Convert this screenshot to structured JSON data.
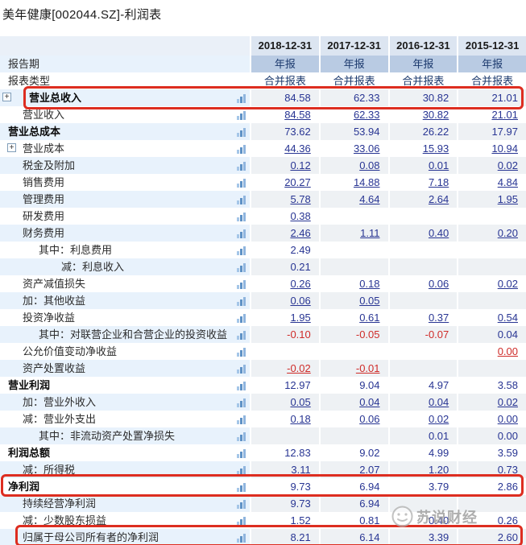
{
  "title": "美年健康[002044.SZ]-利润表",
  "watermark": {
    "text": "苏说财经"
  },
  "icons": {
    "expand_glyph": "+"
  },
  "colors": {
    "annotation_red": "#dd2d20",
    "value_blue": "#283593",
    "negative_red": "#cf2b28",
    "stripe_label_blue": "#e8f2fc",
    "stripe_data_gray": "#eef1f4",
    "period_cell_blue": "#b9cbe3",
    "header_band_blue": "#dce5f1"
  },
  "table": {
    "columns": [
      "2018-12-31",
      "2017-12-31",
      "2016-12-31",
      "2015-12-31"
    ],
    "rows": [
      {
        "label": "报告期",
        "indent": 0,
        "type": "period",
        "chart": false,
        "cells": [
          [
            "年报",
            ""
          ],
          [
            "年报",
            ""
          ],
          [
            "年报",
            ""
          ],
          [
            "年报",
            ""
          ]
        ]
      },
      {
        "label": "报表类型",
        "indent": 0,
        "type": "type",
        "chart": false,
        "cells": [
          [
            "合并报表",
            ""
          ],
          [
            "合并报表",
            ""
          ],
          [
            "合并报表",
            ""
          ],
          [
            "合并报表",
            ""
          ]
        ]
      },
      {
        "label": "营业总收入",
        "indent": 0,
        "bold": true,
        "expand": "outer",
        "chart": true,
        "cells": [
          [
            "84.58",
            ""
          ],
          [
            "62.33",
            ""
          ],
          [
            "30.82",
            ""
          ],
          [
            "21.01",
            ""
          ]
        ]
      },
      {
        "label": "营业收入",
        "indent": 1,
        "chart": true,
        "cells": [
          [
            "84.58",
            "u"
          ],
          [
            "62.33",
            "u"
          ],
          [
            "30.82",
            "u"
          ],
          [
            "21.01",
            "u"
          ]
        ]
      },
      {
        "label": "营业总成本",
        "indent": 0,
        "bold": true,
        "chart": true,
        "cells": [
          [
            "73.62",
            ""
          ],
          [
            "53.94",
            ""
          ],
          [
            "26.22",
            ""
          ],
          [
            "17.97",
            ""
          ]
        ]
      },
      {
        "label": "营业成本",
        "indent": 1,
        "expand": "inner",
        "chart": true,
        "cells": [
          [
            "44.36",
            "u"
          ],
          [
            "33.06",
            "u"
          ],
          [
            "15.93",
            "u"
          ],
          [
            "10.94",
            "u"
          ]
        ]
      },
      {
        "label": "税金及附加",
        "indent": 1,
        "chart": true,
        "cells": [
          [
            "0.12",
            "u"
          ],
          [
            "0.08",
            "u"
          ],
          [
            "0.01",
            "u"
          ],
          [
            "0.02",
            "u"
          ]
        ]
      },
      {
        "label": "销售费用",
        "indent": 1,
        "chart": true,
        "cells": [
          [
            "20.27",
            "u"
          ],
          [
            "14.88",
            "u"
          ],
          [
            "7.18",
            "u"
          ],
          [
            "4.84",
            "u"
          ]
        ]
      },
      {
        "label": "管理费用",
        "indent": 1,
        "chart": true,
        "cells": [
          [
            "5.78",
            "u"
          ],
          [
            "4.64",
            "u"
          ],
          [
            "2.64",
            "u"
          ],
          [
            "1.95",
            "u"
          ]
        ]
      },
      {
        "label": "研发费用",
        "indent": 1,
        "chart": true,
        "cells": [
          [
            "0.38",
            "u"
          ],
          [
            "",
            ""
          ],
          [
            "",
            ""
          ],
          [
            "",
            ""
          ]
        ]
      },
      {
        "label": "财务费用",
        "indent": 1,
        "chart": true,
        "cells": [
          [
            "2.46",
            "u"
          ],
          [
            "1.11",
            "u"
          ],
          [
            "0.40",
            "u"
          ],
          [
            "0.20",
            "u"
          ]
        ]
      },
      {
        "label": "其中：利息费用",
        "indent": 2,
        "chart": true,
        "cells": [
          [
            "2.49",
            ""
          ],
          [
            "",
            ""
          ],
          [
            "",
            ""
          ],
          [
            "",
            ""
          ]
        ]
      },
      {
        "label": "减：利息收入",
        "indent": 3,
        "chart": true,
        "cells": [
          [
            "0.21",
            ""
          ],
          [
            "",
            ""
          ],
          [
            "",
            ""
          ],
          [
            "",
            ""
          ]
        ]
      },
      {
        "label": "资产减值损失",
        "indent": 1,
        "chart": true,
        "cells": [
          [
            "0.26",
            "u"
          ],
          [
            "0.18",
            "u"
          ],
          [
            "0.06",
            "u"
          ],
          [
            "0.02",
            "u"
          ]
        ]
      },
      {
        "label": "加：其他收益",
        "indent": 1,
        "chart": true,
        "cells": [
          [
            "0.06",
            "u"
          ],
          [
            "0.05",
            "u"
          ],
          [
            "",
            ""
          ],
          [
            "",
            ""
          ]
        ]
      },
      {
        "label": "投资净收益",
        "indent": 1,
        "chart": true,
        "cells": [
          [
            "1.95",
            "u"
          ],
          [
            "0.61",
            "u"
          ],
          [
            "0.37",
            "u"
          ],
          [
            "0.54",
            "u"
          ]
        ]
      },
      {
        "label": "其中：对联营企业和合营企业的投资收益",
        "indent": 2,
        "chart": true,
        "cells": [
          [
            "-0.10",
            "neg"
          ],
          [
            "-0.05",
            "neg"
          ],
          [
            "-0.07",
            "neg"
          ],
          [
            "0.04",
            ""
          ]
        ]
      },
      {
        "label": "公允价值变动净收益",
        "indent": 1,
        "chart": true,
        "cells": [
          [
            "",
            ""
          ],
          [
            "",
            ""
          ],
          [
            "",
            ""
          ],
          [
            "0.00",
            "negu"
          ]
        ]
      },
      {
        "label": "资产处置收益",
        "indent": 1,
        "chart": true,
        "cells": [
          [
            "-0.02",
            "negu"
          ],
          [
            "-0.01",
            "negu"
          ],
          [
            "",
            ""
          ],
          [
            "",
            ""
          ]
        ]
      },
      {
        "label": "营业利润",
        "indent": 0,
        "bold": true,
        "chart": true,
        "cells": [
          [
            "12.97",
            ""
          ],
          [
            "9.04",
            ""
          ],
          [
            "4.97",
            ""
          ],
          [
            "3.58",
            ""
          ]
        ]
      },
      {
        "label": "加：营业外收入",
        "indent": 1,
        "chart": true,
        "cells": [
          [
            "0.05",
            "u"
          ],
          [
            "0.04",
            "u"
          ],
          [
            "0.04",
            "u"
          ],
          [
            "0.02",
            "u"
          ]
        ]
      },
      {
        "label": "减：营业外支出",
        "indent": 1,
        "chart": true,
        "cells": [
          [
            "0.18",
            "u"
          ],
          [
            "0.06",
            "u"
          ],
          [
            "0.02",
            "u"
          ],
          [
            "0.00",
            "u"
          ]
        ]
      },
      {
        "label": "其中：非流动资产处置净损失",
        "indent": 2,
        "chart": true,
        "cells": [
          [
            "",
            ""
          ],
          [
            "",
            ""
          ],
          [
            "0.01",
            ""
          ],
          [
            "0.00",
            ""
          ]
        ]
      },
      {
        "label": "利润总额",
        "indent": 0,
        "bold": true,
        "chart": true,
        "cells": [
          [
            "12.83",
            ""
          ],
          [
            "9.02",
            ""
          ],
          [
            "4.99",
            ""
          ],
          [
            "3.59",
            ""
          ]
        ]
      },
      {
        "label": "减：所得税",
        "indent": 1,
        "chart": true,
        "cells": [
          [
            "3.11",
            "u"
          ],
          [
            "2.07",
            "u"
          ],
          [
            "1.20",
            "u"
          ],
          [
            "0.73",
            "u"
          ]
        ]
      },
      {
        "label": "净利润",
        "indent": 0,
        "bold": true,
        "chart": true,
        "cells": [
          [
            "9.73",
            ""
          ],
          [
            "6.94",
            ""
          ],
          [
            "3.79",
            ""
          ],
          [
            "2.86",
            ""
          ]
        ]
      },
      {
        "label": "持续经营净利润",
        "indent": 1,
        "chart": true,
        "cells": [
          [
            "9.73",
            ""
          ],
          [
            "6.94",
            ""
          ],
          [
            "",
            ""
          ],
          [
            "",
            ""
          ]
        ]
      },
      {
        "label": "减：少数股东损益",
        "indent": 1,
        "chart": true,
        "cells": [
          [
            "1.52",
            ""
          ],
          [
            "0.81",
            ""
          ],
          [
            "0.40",
            ""
          ],
          [
            "0.26",
            ""
          ]
        ]
      },
      {
        "label": "归属于母公司所有者的净利润",
        "indent": 1,
        "chart": true,
        "cells": [
          [
            "8.21",
            ""
          ],
          [
            "6.14",
            ""
          ],
          [
            "3.39",
            ""
          ],
          [
            "2.60",
            ""
          ]
        ]
      }
    ]
  },
  "annotations": {
    "boxes": [
      "highlight-total-revenue-row",
      "highlight-net-profit-row",
      "highlight-parent-net-profit-row"
    ]
  }
}
